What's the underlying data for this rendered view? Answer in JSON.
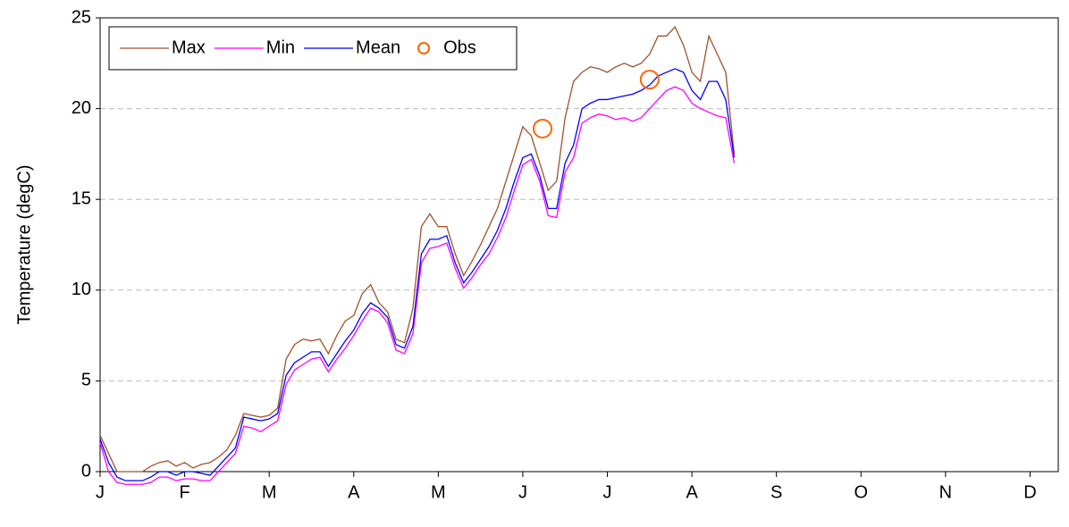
{
  "chart_data": {
    "type": "line",
    "ylabel": "Temperature (degC)",
    "x": [
      0,
      3,
      6,
      9,
      12,
      15,
      18,
      21,
      24,
      27,
      30,
      33,
      36,
      39,
      42,
      45,
      48,
      51,
      54,
      57,
      60,
      63,
      66,
      69,
      72,
      75,
      78,
      81,
      84,
      87,
      90,
      93,
      96,
      99,
      102,
      105,
      108,
      111,
      114,
      117,
      120,
      123,
      126,
      129,
      132,
      135,
      138,
      141,
      144,
      147,
      150,
      153,
      156,
      159,
      162,
      165,
      168,
      171,
      174,
      177,
      180,
      183,
      186,
      189,
      192,
      195,
      198,
      201,
      204,
      207,
      210,
      213,
      216,
      219,
      222,
      225
    ],
    "series": [
      {
        "name": "Max",
        "color": "#a0522d",
        "values": [
          2,
          1,
          0,
          0,
          0,
          0,
          0.3,
          0.5,
          0.6,
          0.3,
          0.5,
          0.2,
          0.4,
          0.5,
          0.8,
          1.2,
          2,
          3.2,
          3.1,
          3,
          3.1,
          3.5,
          6.2,
          7,
          7.3,
          7.2,
          7.3,
          6.5,
          7.5,
          8.3,
          8.6,
          9.8,
          10.3,
          9.3,
          8.8,
          7.3,
          7.1,
          9,
          13.5,
          14.2,
          13.5,
          13.5,
          12,
          10.8,
          11.6,
          12.5,
          13.5,
          14.5,
          16,
          17.5,
          19,
          18.5,
          17,
          15.5,
          16,
          19.5,
          21.5,
          22,
          22.3,
          22.2,
          22,
          22.3,
          22.5,
          22.3,
          22.5,
          23,
          24,
          24,
          24.5,
          23.5,
          22,
          21.5,
          24,
          23,
          22,
          17.5
        ]
      },
      {
        "name": "Min",
        "color": "#ff00ff",
        "values": [
          1.6,
          0,
          -0.6,
          -0.7,
          -0.7,
          -0.7,
          -0.6,
          -0.3,
          -0.3,
          -0.5,
          -0.4,
          -0.4,
          -0.5,
          -0.5,
          0,
          0.5,
          1,
          2.5,
          2.4,
          2.2,
          2.5,
          2.8,
          4.8,
          5.6,
          5.9,
          6.2,
          6.3,
          5.5,
          6.2,
          6.8,
          7.5,
          8.3,
          9,
          8.8,
          8.2,
          6.7,
          6.5,
          7.6,
          11.5,
          12.3,
          12.4,
          12.6,
          11.2,
          10.1,
          10.7,
          11.4,
          12,
          12.9,
          14,
          15.5,
          16.9,
          17.2,
          16,
          14.1,
          14,
          16.5,
          17.3,
          19.2,
          19.5,
          19.7,
          19.6,
          19.4,
          19.5,
          19.3,
          19.5,
          20,
          20.5,
          21,
          21.2,
          21,
          20.3,
          20,
          19.8,
          19.6,
          19.5,
          17
        ]
      },
      {
        "name": "Mean",
        "color": "#0000ff",
        "values": [
          1.8,
          0.5,
          -0.3,
          -0.5,
          -0.5,
          -0.5,
          -0.3,
          0,
          0,
          -0.2,
          0,
          0,
          -0.1,
          -0.2,
          0.3,
          0.8,
          1.3,
          3,
          2.9,
          2.8,
          2.9,
          3.2,
          5.3,
          6,
          6.3,
          6.6,
          6.6,
          5.8,
          6.5,
          7.2,
          7.8,
          8.7,
          9.3,
          9,
          8.5,
          7,
          6.8,
          8,
          12,
          12.8,
          12.8,
          13,
          11.5,
          10.4,
          11,
          11.7,
          12.4,
          13.3,
          14.5,
          16,
          17.3,
          17.5,
          16.3,
          14.5,
          14.5,
          17,
          18,
          20,
          20.3,
          20.5,
          20.5,
          20.6,
          20.7,
          20.8,
          21,
          21.3,
          21.8,
          22,
          22.2,
          22,
          21,
          20.5,
          21.5,
          21.5,
          20.5,
          17.3
        ]
      }
    ],
    "points": {
      "name": "Obs",
      "color": "#ff6600",
      "x": [
        157,
        195
      ],
      "values": [
        18.9,
        21.6
      ]
    },
    "xlim": [
      0,
      340
    ],
    "xticks": [
      {
        "value": 0,
        "label": "J"
      },
      {
        "value": 30,
        "label": "F"
      },
      {
        "value": 60,
        "label": "M"
      },
      {
        "value": 90,
        "label": "A"
      },
      {
        "value": 120,
        "label": "M"
      },
      {
        "value": 150,
        "label": "J"
      },
      {
        "value": 180,
        "label": "J"
      },
      {
        "value": 210,
        "label": "A"
      },
      {
        "value": 240,
        "label": "S"
      },
      {
        "value": 270,
        "label": "O"
      },
      {
        "value": 300,
        "label": "N"
      },
      {
        "value": 330,
        "label": "D"
      }
    ],
    "ylim": [
      0,
      25
    ],
    "yticks": [
      0,
      5,
      10,
      15,
      20,
      25
    ],
    "grid": true,
    "legend": "top-left"
  }
}
